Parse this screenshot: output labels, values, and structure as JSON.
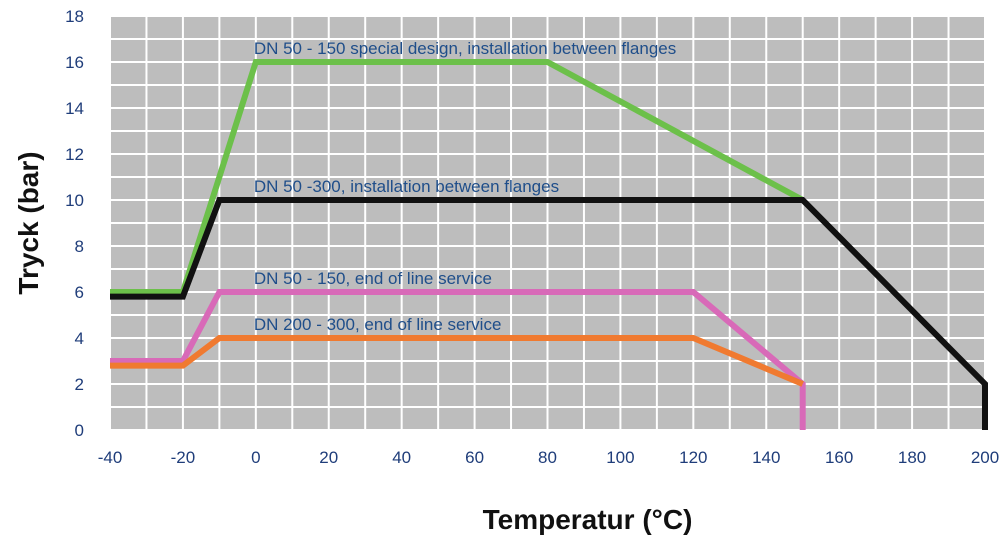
{
  "chart_data": {
    "type": "line",
    "xlabel": "Temperatur (°C)",
    "ylabel": "Tryck (bar)",
    "xlim": [
      -40,
      200
    ],
    "ylim": [
      0,
      18
    ],
    "xticks": [
      -40,
      -20,
      0,
      20,
      40,
      60,
      80,
      100,
      120,
      140,
      160,
      180,
      200
    ],
    "yticks": [
      0,
      2,
      4,
      6,
      8,
      10,
      12,
      14,
      16,
      18
    ],
    "grid": true,
    "plot_background": "#bdbdbd",
    "grid_color": "#ffffff",
    "series": [
      {
        "name": "DN 50 - 150 special design, installation between flanges",
        "color": "#6cc04a",
        "x": [
          -40,
          -20,
          0,
          80,
          150
        ],
        "y": [
          6,
          6,
          16,
          16,
          10
        ]
      },
      {
        "name": "DN 50 -300, installation between flanges",
        "color": "#111111",
        "x": [
          -40,
          -20,
          -10,
          150,
          200,
          200
        ],
        "y": [
          5.8,
          5.8,
          10,
          10,
          2,
          0
        ]
      },
      {
        "name": "DN 50 - 150, end of line service",
        "color": "#d86ab8",
        "x": [
          -40,
          -20,
          -10,
          120,
          150,
          150
        ],
        "y": [
          3,
          3,
          6,
          6,
          2,
          0
        ]
      },
      {
        "name": "DN 200 - 300, end of line service",
        "color": "#f07a30",
        "x": [
          -40,
          -20,
          -10,
          120,
          150
        ],
        "y": [
          2.8,
          2.8,
          4,
          4,
          2
        ]
      }
    ],
    "annotations": [
      {
        "series": 0,
        "text": "DN 50 - 150 special design, installation between flanges",
        "x": 0,
        "y": 16.6
      },
      {
        "series": 1,
        "text": "DN 50 -300, installation between flanges",
        "x": 0,
        "y": 10.6
      },
      {
        "series": 2,
        "text": "DN 50 - 150, end of line service",
        "x": 0,
        "y": 6.6
      },
      {
        "series": 3,
        "text": "DN 200 - 300, end of line service",
        "x": 0,
        "y": 4.6
      }
    ]
  }
}
